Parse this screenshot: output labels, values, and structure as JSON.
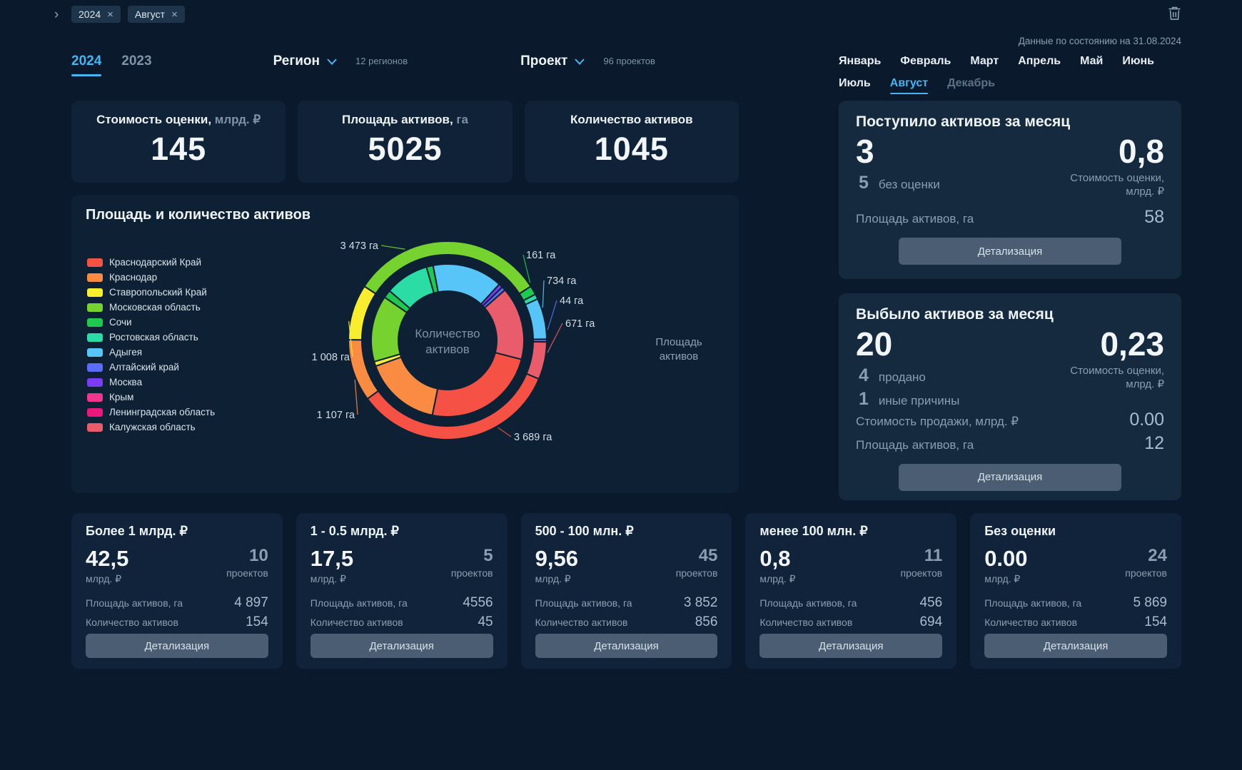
{
  "icons": {
    "close": "×",
    "expander": "›"
  },
  "topbar": {
    "chips": [
      "2024",
      "Август"
    ]
  },
  "header": {
    "year_tabs": [
      {
        "label": "2024",
        "active": true
      },
      {
        "label": "2023",
        "active": false
      }
    ],
    "region_dropdown": {
      "label": "Регион",
      "caption": "12 регионов"
    },
    "project_dropdown": {
      "label": "Проект",
      "caption": "96 проектов"
    },
    "data_as_of": "Данные по состоянию на 31.08.2024",
    "months": [
      {
        "label": "Январь",
        "state": "normal"
      },
      {
        "label": "Февраль",
        "state": "normal"
      },
      {
        "label": "Март",
        "state": "normal"
      },
      {
        "label": "Апрель",
        "state": "normal"
      },
      {
        "label": "Май",
        "state": "normal"
      },
      {
        "label": "Июнь",
        "state": "normal"
      },
      {
        "label": "Июль",
        "state": "normal"
      },
      {
        "label": "Август",
        "state": "active"
      },
      {
        "label": "Декабрь",
        "state": "muted"
      }
    ]
  },
  "kpis": [
    {
      "title": "Стоимость оценки,",
      "unit": "млрд. ₽",
      "value": "145"
    },
    {
      "title": "Площадь активов,",
      "unit": "га",
      "value": "5025"
    },
    {
      "title": "Количество активов",
      "unit": "",
      "value": "1045"
    }
  ],
  "chart_card": {
    "title": "Площадь и количество активов",
    "center_label": "Количество\nактивов",
    "outer_ring_label": "Площадь\nактивов"
  },
  "chart_data": {
    "type": "donut-nested",
    "title": "Площадь и количество активов",
    "unit": "га",
    "legend": [
      {
        "name": "Краснодарский Край",
        "color": "#f55145"
      },
      {
        "name": "Краснодар",
        "color": "#fa8b42"
      },
      {
        "name": "Ставропольский Край",
        "color": "#f8ee2f"
      },
      {
        "name": "Московская область",
        "color": "#76d22e"
      },
      {
        "name": "Сочи",
        "color": "#1fc94f"
      },
      {
        "name": "Ростовская область",
        "color": "#2bdca4"
      },
      {
        "name": "Адыгея",
        "color": "#58c5f9"
      },
      {
        "name": "Алтайский край",
        "color": "#5a6cf8"
      },
      {
        "name": "Москва",
        "color": "#7c3bf5"
      },
      {
        "name": "Крым",
        "color": "#f0368f"
      },
      {
        "name": "Ленинградская область",
        "color": "#e9187c"
      },
      {
        "name": "Калужская область",
        "color": "#e85c6b"
      }
    ],
    "outer_ring": {
      "name": "Площадь активов",
      "start_deg": -57,
      "segments": [
        {
          "region": "Московская область",
          "color": "#76d22e",
          "value_ha": 3473,
          "label": "3 473 га",
          "sweep_deg": 114
        },
        {
          "region": "Сочи",
          "color": "#1fc94f",
          "value_ha": 161,
          "label": "161 га",
          "sweep_deg": 5.3
        },
        {
          "region": "Ростовская область",
          "color": "#2bdca4",
          "value_ha": null,
          "label": null,
          "sweep_deg": 3
        },
        {
          "region": "Адыгея",
          "color": "#58c5f9",
          "value_ha": 734,
          "label": "734 га",
          "sweep_deg": 24
        },
        {
          "region": "Алтайский край",
          "color": "#5a6cf8",
          "value_ha": 44,
          "label": "44 га",
          "sweep_deg": 1.6
        },
        {
          "region": "Калужская область",
          "color": "#e85c6b",
          "value_ha": 671,
          "label": "671 га",
          "sweep_deg": 22
        },
        {
          "region": "Краснодарский Край",
          "color": "#f55145",
          "value_ha": 3689,
          "label": "3 689 га",
          "sweep_deg": 121
        },
        {
          "region": "Краснодар",
          "color": "#fa8b42",
          "value_ha": 1107,
          "label": "1 107 га",
          "sweep_deg": 36.5
        },
        {
          "region": "Ставропольский Край",
          "color": "#f8ee2f",
          "value_ha": 1008,
          "label": "1 008 га",
          "sweep_deg": 32.6
        }
      ]
    },
    "inner_ring": {
      "name": "Количество активов",
      "start_deg": -11,
      "segments": [
        {
          "region": "Адыгея",
          "color": "#58c5f9",
          "sweep_deg": 53
        },
        {
          "region": "Москва",
          "color": "#7c3bf5",
          "sweep_deg": 3
        },
        {
          "region": "Алтайский край",
          "color": "#5a6cf8",
          "sweep_deg": 3
        },
        {
          "region": "Калужская область",
          "color": "#e85c6b",
          "sweep_deg": 55
        },
        {
          "region": "Краснодарский Край",
          "color": "#f55145",
          "sweep_deg": 86
        },
        {
          "region": "Краснодар",
          "color": "#fa8b42",
          "sweep_deg": 58
        },
        {
          "region": "Ставропольский Край",
          "color": "#f8ee2f",
          "sweep_deg": 3.5
        },
        {
          "region": "Московская область",
          "color": "#76d22e",
          "sweep_deg": 50
        },
        {
          "region": "Сочи",
          "color": "#1fc94f",
          "sweep_deg": 6
        },
        {
          "region": "Ростовская область",
          "color": "#2bdca4",
          "sweep_deg": 33
        },
        {
          "region": null,
          "color": "#1fc94f",
          "sweep_deg": 5
        }
      ]
    }
  },
  "inflow": {
    "title": "Поступило активов за месяц",
    "count": "3",
    "subs": [
      {
        "num": "5",
        "label": "без оценки"
      }
    ],
    "value": "0,8",
    "value_caption": "Стоимость оценки,\nмлрд. ₽",
    "rows": [
      {
        "label": "Площадь активов, га",
        "value": "58"
      }
    ],
    "button": "Детализация"
  },
  "outflow": {
    "title": "Выбыло активов за месяц",
    "count": "20",
    "subs": [
      {
        "num": "4",
        "label": "продано"
      },
      {
        "num": "1",
        "label": "иные причины"
      }
    ],
    "value": "0,23",
    "value_caption": "Стоимость оценки,\nмлрд. ₽",
    "rows": [
      {
        "label": "Стоимость продажи, млрд. ₽",
        "value": "0.00"
      },
      {
        "label": "Площадь активов, га",
        "value": "12"
      }
    ],
    "button": "Детализация"
  },
  "summary_cards": [
    {
      "title": "Более 1 млрд. ₽",
      "value": "42,5",
      "unit": "млрд. ₽",
      "projects": "10",
      "projects_label": "проектов",
      "rows": [
        {
          "label": "Площадь активов, га",
          "value": "4 897"
        },
        {
          "label": "Количество активов",
          "value": "154"
        }
      ],
      "button": "Детализация"
    },
    {
      "title": "1 - 0.5 млрд. ₽",
      "value": "17,5",
      "unit": "млрд. ₽",
      "projects": "5",
      "projects_label": "проектов",
      "rows": [
        {
          "label": "Площадь активов, га",
          "value": "4556"
        },
        {
          "label": "Количество активов",
          "value": "45"
        }
      ],
      "button": "Детализация"
    },
    {
      "title": "500 - 100 млн. ₽",
      "value": "9,56",
      "unit": "млрд. ₽",
      "projects": "45",
      "projects_label": "проектов",
      "rows": [
        {
          "label": "Площадь активов, га",
          "value": "3 852"
        },
        {
          "label": "Количество активов",
          "value": "856"
        }
      ],
      "button": "Детализация"
    },
    {
      "title": "менее 100 млн. ₽",
      "value": "0,8",
      "unit": "млрд. ₽",
      "projects": "11",
      "projects_label": "проектов",
      "rows": [
        {
          "label": "Площадь активов, га",
          "value": "456"
        },
        {
          "label": "Количество активов",
          "value": "694"
        }
      ],
      "button": "Детализация"
    },
    {
      "title": "Без оценки",
      "value": "0.00",
      "unit": "млрд. ₽",
      "projects": "24",
      "projects_label": "проектов",
      "rows": [
        {
          "label": "Площадь активов, га",
          "value": "5 869"
        },
        {
          "label": "Количество активов",
          "value": "154"
        }
      ],
      "button": "Детализация"
    }
  ]
}
